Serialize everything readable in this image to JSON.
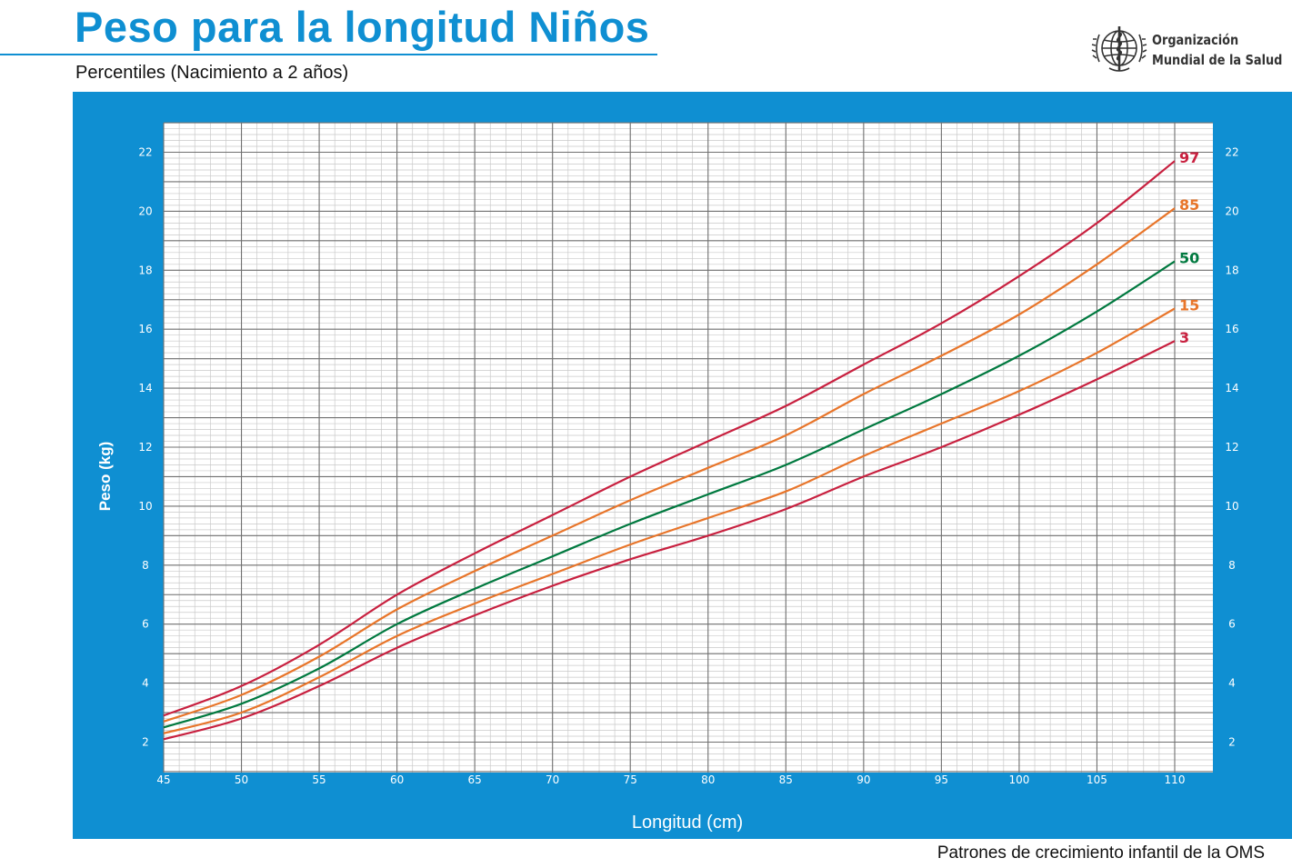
{
  "header": {
    "title": "Peso para la longitud Niños",
    "subtitle": "Percentiles (Nacimiento a 2 años)"
  },
  "logo": {
    "icon": "who-emblem-icon",
    "line1": "Organización",
    "line2": "Mundial de la Salud"
  },
  "footer": {
    "source": "Patrones de crecimiento infantil de la OMS"
  },
  "colors": {
    "brand_blue": "#0f8fd2",
    "p3": "#c8203f",
    "p15": "#e8752a",
    "p50": "#00793f",
    "p85": "#e8752a",
    "p97": "#c8203f"
  },
  "chart_data": {
    "type": "line",
    "title": "Peso para la longitud Niños",
    "subtitle": "Percentiles (Nacimiento a 2 años)",
    "xlabel": "Longitud (cm)",
    "ylabel": "Peso (kg)",
    "xlim": [
      45,
      110
    ],
    "ylim": [
      1,
      23
    ],
    "xticks": [
      45,
      50,
      55,
      60,
      65,
      70,
      75,
      80,
      85,
      90,
      95,
      100,
      105,
      110
    ],
    "yticks": [
      2,
      4,
      6,
      8,
      10,
      12,
      14,
      16,
      18,
      20,
      22
    ],
    "grid": true,
    "x": [
      45,
      50,
      55,
      60,
      65,
      70,
      75,
      80,
      85,
      90,
      95,
      100,
      105,
      110
    ],
    "series": [
      {
        "name": "3",
        "color": "#c8203f",
        "values": [
          2.1,
          2.8,
          3.9,
          5.2,
          6.3,
          7.3,
          8.2,
          9.0,
          9.9,
          11.0,
          12.0,
          13.1,
          14.3,
          15.6
        ]
      },
      {
        "name": "15",
        "color": "#e8752a",
        "values": [
          2.3,
          3.0,
          4.2,
          5.6,
          6.7,
          7.7,
          8.7,
          9.6,
          10.5,
          11.7,
          12.8,
          13.9,
          15.2,
          16.7
        ]
      },
      {
        "name": "50",
        "color": "#00793f",
        "values": [
          2.5,
          3.3,
          4.5,
          6.0,
          7.2,
          8.3,
          9.4,
          10.4,
          11.4,
          12.6,
          13.8,
          15.1,
          16.6,
          18.3
        ]
      },
      {
        "name": "85",
        "color": "#e8752a",
        "values": [
          2.7,
          3.6,
          4.9,
          6.5,
          7.8,
          9.0,
          10.2,
          11.3,
          12.4,
          13.8,
          15.1,
          16.5,
          18.2,
          20.1
        ]
      },
      {
        "name": "97",
        "color": "#c8203f",
        "values": [
          2.9,
          3.9,
          5.3,
          7.0,
          8.4,
          9.7,
          11.0,
          12.2,
          13.4,
          14.8,
          16.2,
          17.8,
          19.6,
          21.7
        ]
      }
    ]
  }
}
